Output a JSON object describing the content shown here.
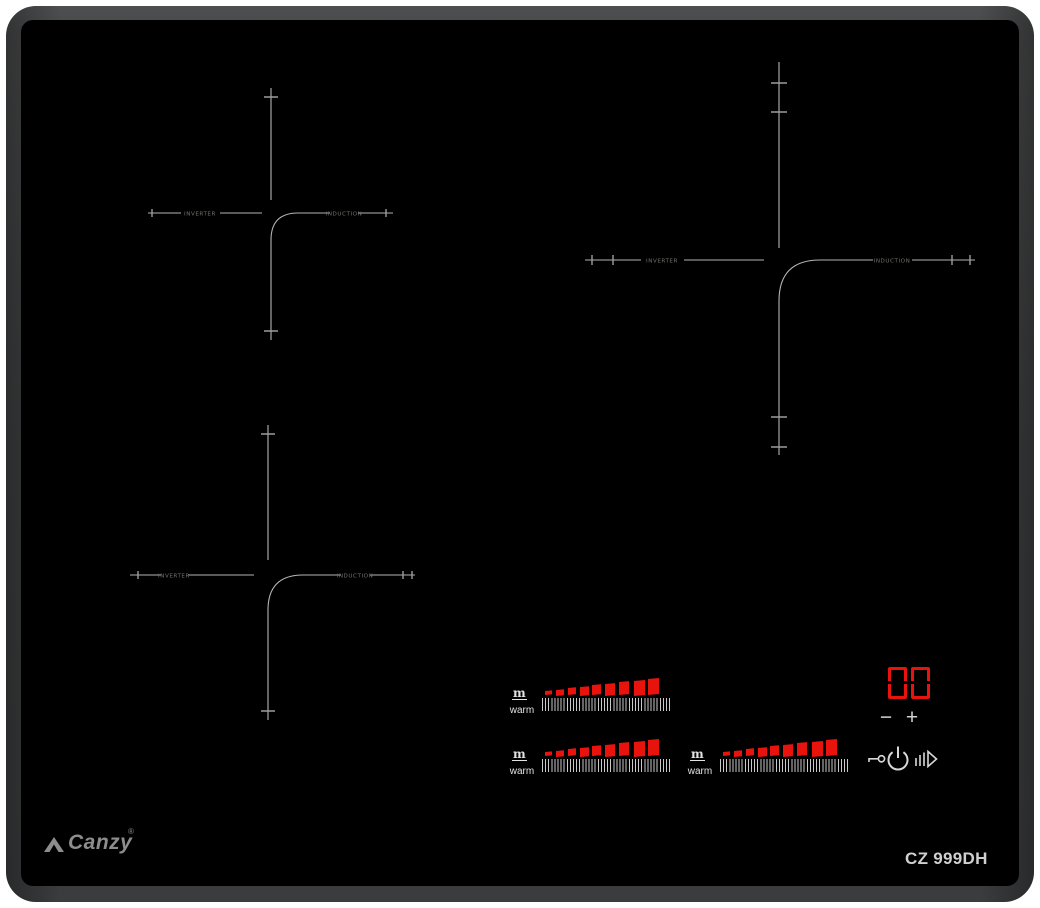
{
  "device": {
    "brand": "Canzy",
    "brand_reg": "®",
    "model": "CZ 999DH"
  },
  "zones": [
    {
      "id": "top-left",
      "inverter_label": "INVERTER",
      "induction_label": "INDUCTION"
    },
    {
      "id": "bottom-left",
      "inverter_label": "INVERTER",
      "induction_label": "INDUCTION"
    },
    {
      "id": "right",
      "inverter_label": "INVERTER",
      "induction_label": "INDUCTION"
    }
  ],
  "controls": {
    "sliders": [
      {
        "zone": "right",
        "warm_icon_glyph": "m",
        "warm_label": "warm",
        "segments": 9,
        "ticks": 42
      },
      {
        "zone": "top-left",
        "warm_icon_glyph": "m",
        "warm_label": "warm",
        "segments": 9,
        "ticks": 42
      },
      {
        "zone": "bottom-left",
        "warm_icon_glyph": "m",
        "warm_label": "warm",
        "segments": 9,
        "ticks": 42
      }
    ],
    "display": {
      "value": "00"
    },
    "minus_label": "−",
    "plus_label": "+",
    "icons": {
      "lock": "key-icon",
      "power": "power-icon",
      "boost": "boost-icon"
    }
  },
  "colors": {
    "accent_red": "#e8130c",
    "line_gray": "#b5b5b5",
    "label_gray": "#75746a",
    "logo_gray": "#8d8d8d",
    "frame_gray": "#434546",
    "text_light": "#d6d6d6"
  }
}
